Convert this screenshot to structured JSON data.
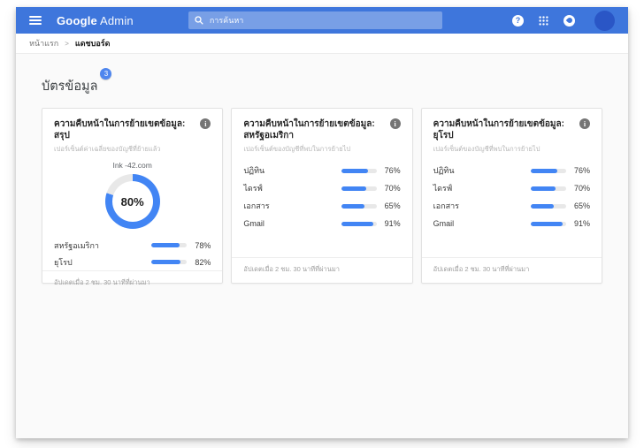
{
  "colors": {
    "appbar": "#3e76dc",
    "accent": "#4285f4",
    "track": "#e8e8e8",
    "avatar": "#2a56c6",
    "badge": "#4e86ee"
  },
  "topbar": {
    "brand_primary": "Google",
    "brand_secondary": "Admin",
    "search_placeholder": "การค้นหา",
    "help_glyph": "?"
  },
  "breadcrumb": {
    "home": "หน้าแรก",
    "separator": ">",
    "current": "แดชบอร์ด"
  },
  "page": {
    "heading": "บัตรข้อมูล",
    "badge": "3"
  },
  "icons": {
    "info_glyph": "i"
  },
  "cards": [
    {
      "title": "ความคืบหน้าในการย้ายเขตข้อมูล: สรุป",
      "subtitle": "เปอร์เซ็นต์ค่าเฉลี่ยของบัญชีที่ย้ายแล้ว",
      "donut": {
        "label": "Ink -42.com",
        "percent": 80,
        "percent_label": "80%"
      },
      "rows": [
        {
          "label": "สหรัฐอเมริกา",
          "value": 78,
          "value_label": "78%"
        },
        {
          "label": "ยุโรป",
          "value": 82,
          "value_label": "82%"
        }
      ],
      "footer": "อัปเดตเมื่อ 2 ชม. 30 นาทีที่ผ่านมา"
    },
    {
      "title": "ความคืบหน้าในการย้ายเขตข้อมูล: สหรัฐอเมริกา",
      "subtitle": "เปอร์เซ็นต์ของบัญชีที่พบในการย้ายไป",
      "rows": [
        {
          "label": "ปฏิทิน",
          "value": 76,
          "value_label": "76%"
        },
        {
          "label": "ไดรฟ์",
          "value": 70,
          "value_label": "70%"
        },
        {
          "label": "เอกสาร",
          "value": 65,
          "value_label": "65%"
        },
        {
          "label": "Gmail",
          "value": 91,
          "value_label": "91%"
        }
      ],
      "footer": "อัปเดตเมื่อ 2 ชม. 30 นาทีที่ผ่านมา"
    },
    {
      "title": "ความคืบหน้าในการย้ายเขตข้อมูล: ยุโรป",
      "subtitle": "เปอร์เซ็นต์ของบัญชีที่พบในการย้ายไป",
      "rows": [
        {
          "label": "ปฏิทิน",
          "value": 76,
          "value_label": "76%"
        },
        {
          "label": "ไดรฟ์",
          "value": 70,
          "value_label": "70%"
        },
        {
          "label": "เอกสาร",
          "value": 65,
          "value_label": "65%"
        },
        {
          "label": "Gmail",
          "value": 91,
          "value_label": "91%"
        }
      ],
      "footer": "อัปเดตเมื่อ 2 ชม. 30 นาทีที่ผ่านมา"
    }
  ]
}
